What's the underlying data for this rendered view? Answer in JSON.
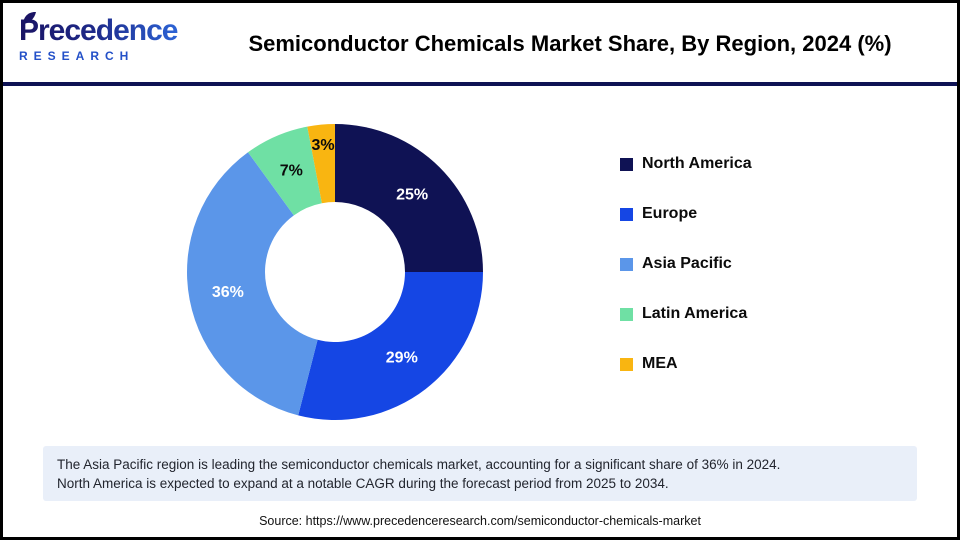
{
  "header": {
    "logo_line1": "Precedence",
    "logo_line2": "RESEARCH",
    "title": "Semiconductor Chemicals Market Share, By Region, 2024 (%)"
  },
  "chart_data": {
    "type": "pie",
    "subtype": "donut",
    "title": "Semiconductor Chemicals Market Share, By Region, 2024 (%)",
    "categories": [
      "North America",
      "Europe",
      "Asia Pacific",
      "Latin America",
      "MEA"
    ],
    "values": [
      25,
      29,
      36,
      7,
      3
    ],
    "unit": "%",
    "slice_labels": [
      "25%",
      "29%",
      "36%",
      "7%",
      "3%"
    ],
    "colors": [
      "#0f1254",
      "#1546e4",
      "#5b96e9",
      "#6fe0a4",
      "#f9b511"
    ],
    "label_colors": [
      "#ffffff",
      "#ffffff",
      "#ffffff",
      "#0b0b0b",
      "#0b0b0b"
    ],
    "label_radii": [
      109,
      109,
      109,
      110,
      127
    ],
    "start_angle_deg": 0,
    "direction": "clockwise",
    "legend_position": "right",
    "legend_entries": [
      "North America",
      "Europe",
      "Asia Pacific",
      "Latin America",
      "MEA"
    ]
  },
  "footnote": {
    "line1": "The Asia Pacific region is leading the semiconductor chemicals market, accounting for a significant share of 36% in 2024.",
    "line2": "North America is expected to expand at a notable CAGR during the forecast period from 2025 to 2034."
  },
  "source": "Source: https://www.precedenceresearch.com/semiconductor-chemicals-market",
  "colors": {
    "divider": "#0e1254",
    "footnote_bg": "#e9eff9",
    "logo_navy": "#1a1464",
    "logo_blue": "#2e6be0",
    "border": "#000000"
  }
}
